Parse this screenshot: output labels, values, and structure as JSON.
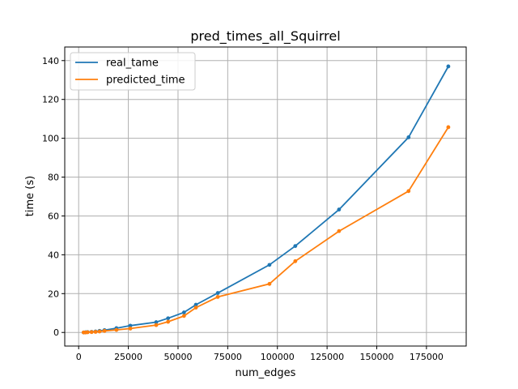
{
  "chart_data": {
    "type": "line",
    "title": "pred_times_all_Squirrel",
    "xlabel": "num_edges",
    "ylabel": "time (s)",
    "xlim": [
      -7000,
      195000
    ],
    "ylim": [
      -7,
      147
    ],
    "xticks": [
      0,
      25000,
      50000,
      75000,
      100000,
      125000,
      150000,
      175000
    ],
    "xtick_labels": [
      "0",
      "25000",
      "50000",
      "75000",
      "100000",
      "125000",
      "150000",
      "175000"
    ],
    "yticks": [
      0,
      20,
      40,
      60,
      80,
      100,
      120,
      140
    ],
    "ytick_labels": [
      "0",
      "20",
      "40",
      "60",
      "80",
      "100",
      "120",
      "140"
    ],
    "grid": true,
    "legend_position": "top-left",
    "series": [
      {
        "name": "real_tame",
        "color": "#1f77b4",
        "x": [
          2500,
          3500,
          4500,
          6500,
          8500,
          10500,
          13000,
          19000,
          26000,
          39000,
          45000,
          53000,
          59000,
          70000,
          96000,
          109000,
          131000,
          166000,
          186000
        ],
        "y": [
          0.0,
          0.1,
          0.2,
          0.3,
          0.5,
          0.8,
          1.2,
          2.2,
          3.5,
          5.3,
          7.3,
          10.3,
          14.3,
          20.3,
          34.8,
          44.5,
          63.3,
          100.5,
          137.0
        ]
      },
      {
        "name": "predicted_time",
        "color": "#ff7f0e",
        "x": [
          2500,
          3500,
          4500,
          6500,
          8500,
          10500,
          13000,
          19000,
          26000,
          39000,
          45000,
          53000,
          59000,
          70000,
          96000,
          109000,
          131000,
          166000,
          186000
        ],
        "y": [
          0.0,
          0.0,
          0.1,
          0.2,
          0.3,
          0.5,
          0.8,
          1.3,
          2.0,
          3.8,
          5.5,
          8.5,
          12.8,
          18.3,
          25.0,
          36.7,
          52.2,
          72.8,
          105.7
        ]
      }
    ]
  }
}
